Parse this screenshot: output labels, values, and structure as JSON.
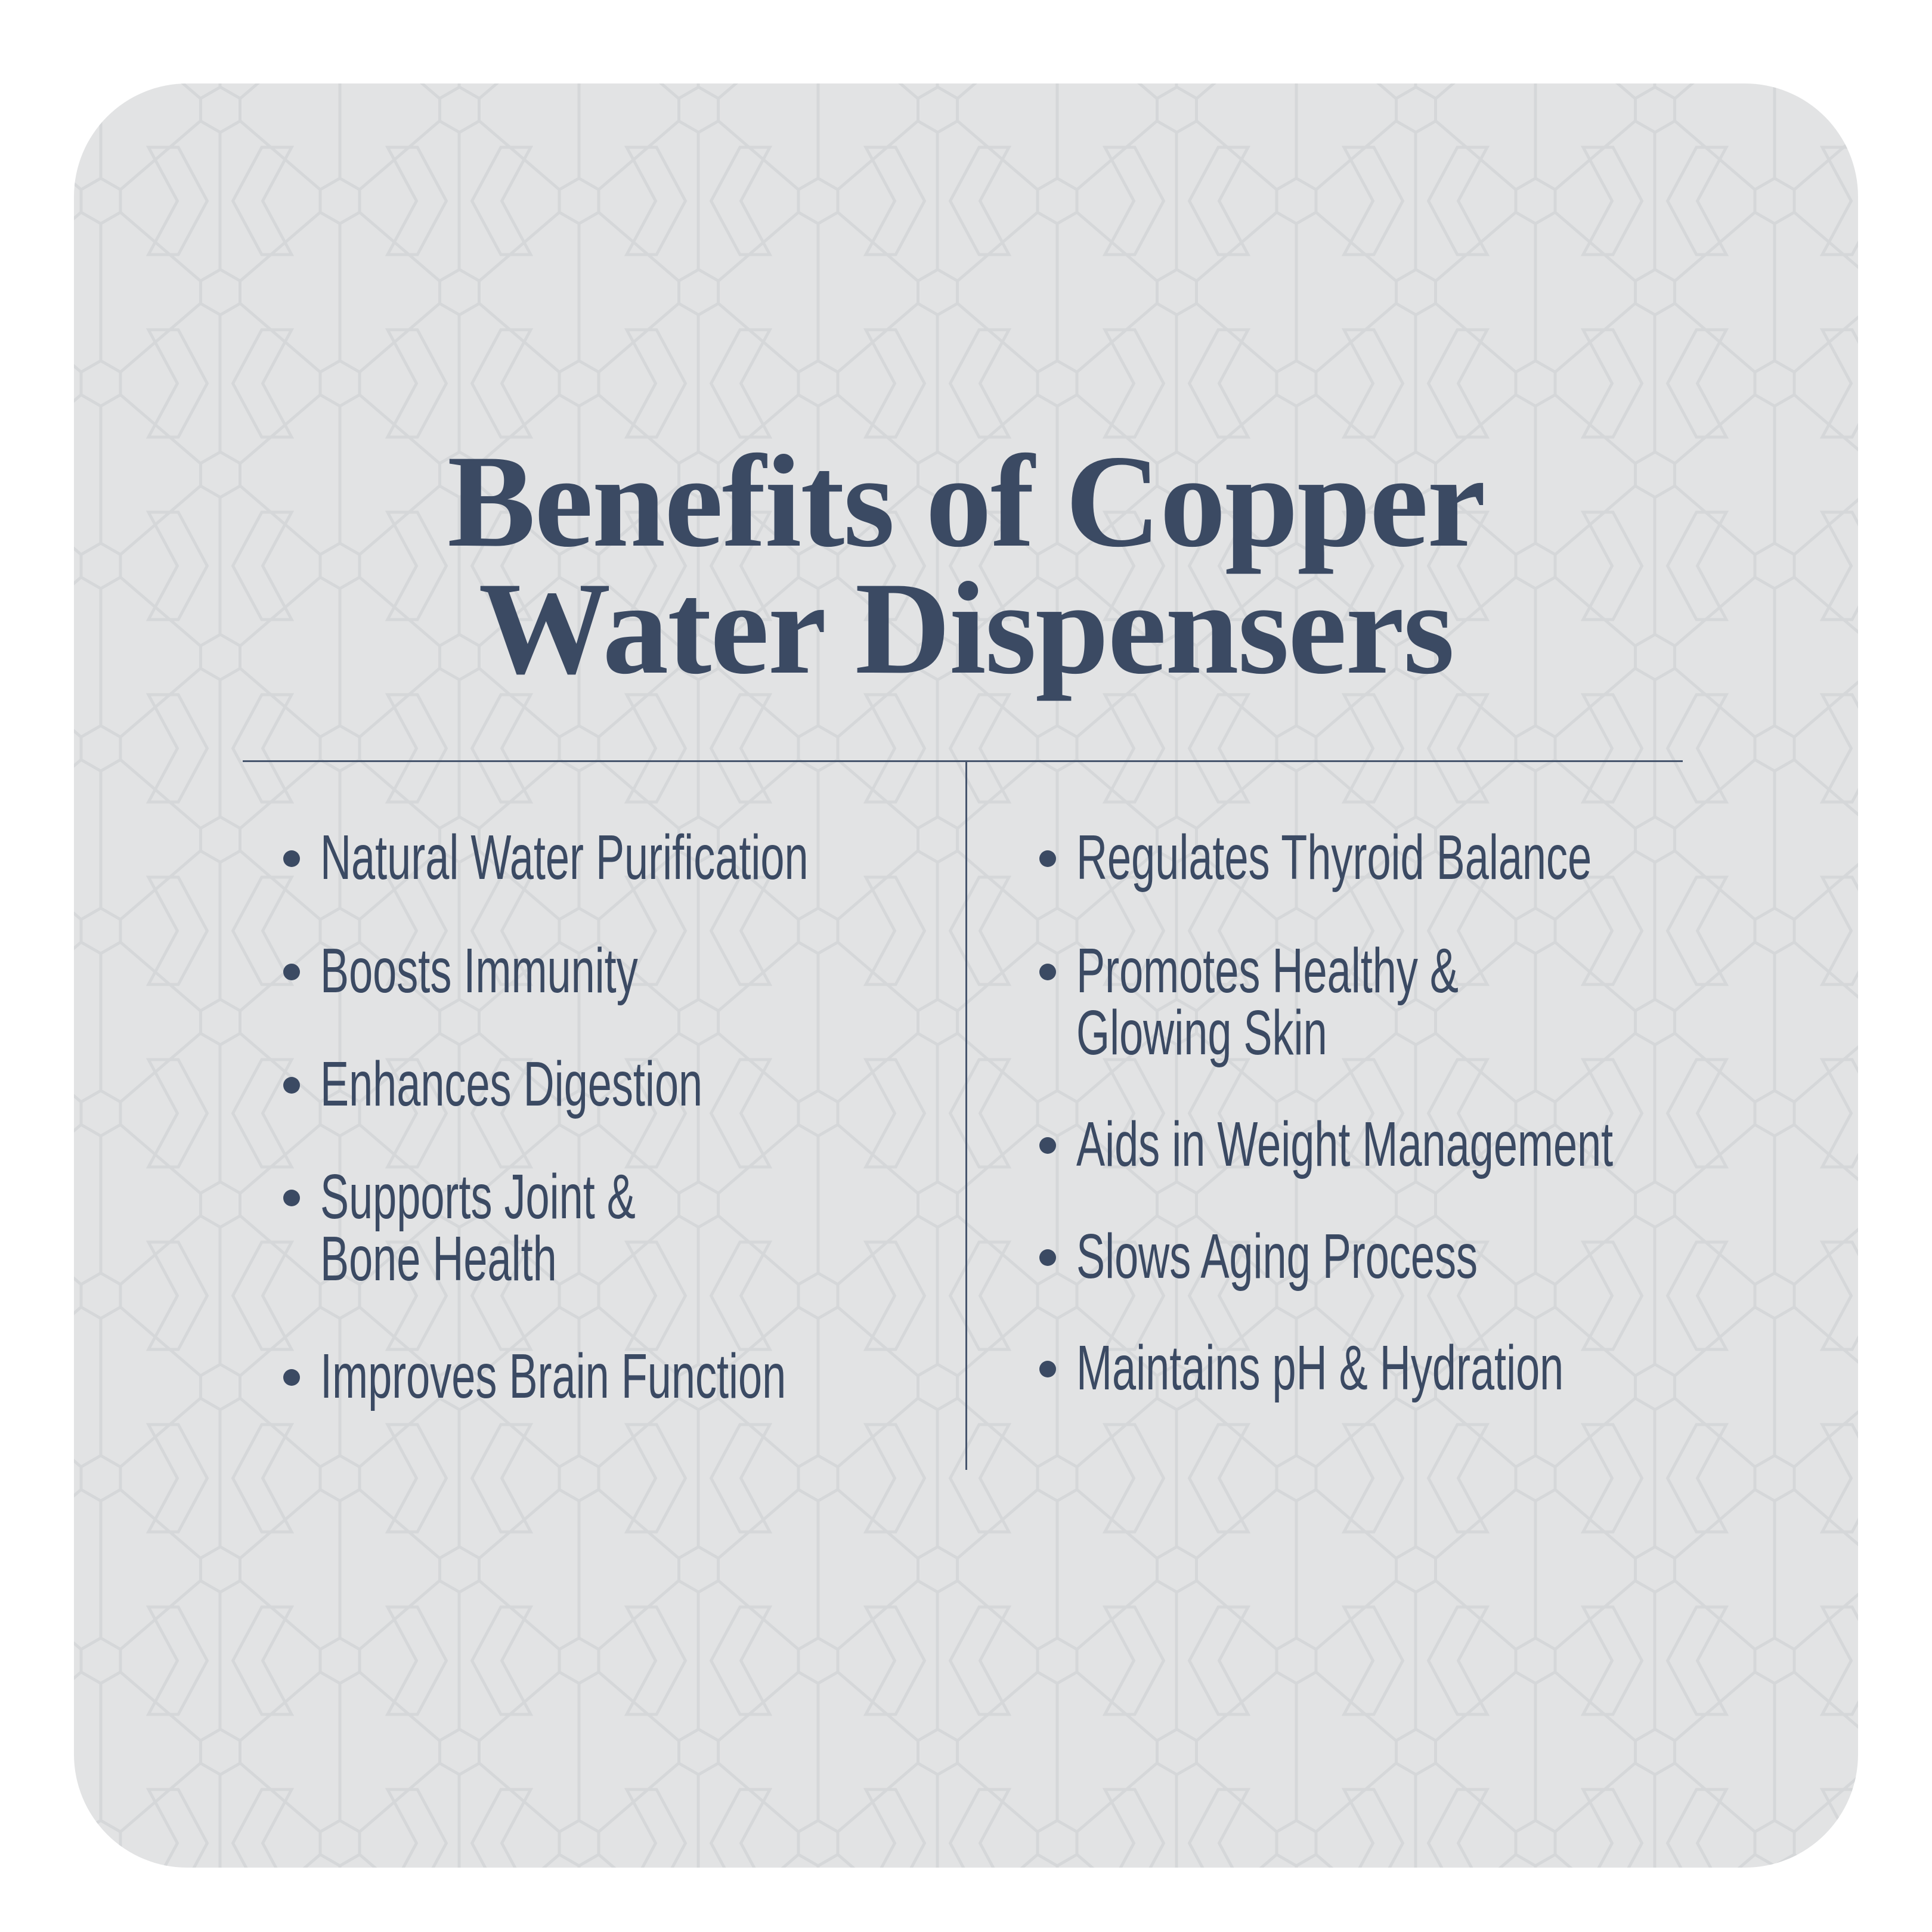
{
  "title": {
    "line1": "Benefits of Copper",
    "line2": "Water Dispensers"
  },
  "left_items": [
    {
      "lines": [
        "Natural Water Purification"
      ]
    },
    {
      "lines": [
        "Boosts Immunity"
      ]
    },
    {
      "lines": [
        "Enhances Digestion"
      ]
    },
    {
      "lines": [
        "Supports Joint &",
        "Bone Health"
      ]
    },
    {
      "lines": [
        "Improves Brain Function"
      ]
    }
  ],
  "right_items": [
    {
      "lines": [
        "Regulates Thyroid Balance"
      ]
    },
    {
      "lines": [
        "Promotes Healthy &",
        "Glowing Skin"
      ]
    },
    {
      "lines": [
        "Aids in Weight Management"
      ]
    },
    {
      "lines": [
        "Slows Aging Process"
      ]
    },
    {
      "lines": [
        "Maintains pH & Hydration"
      ]
    }
  ],
  "colors": {
    "text": "#3b4a63",
    "background": "#e2e3e4",
    "pattern": "#d6d8da"
  }
}
